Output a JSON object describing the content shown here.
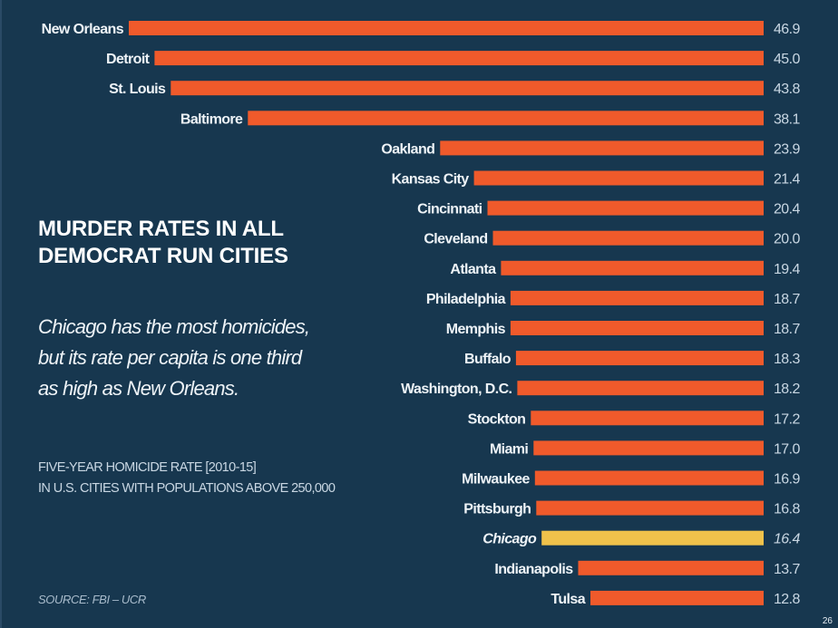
{
  "slide": {
    "title_lines": [
      "MURDER RATES IN ALL",
      "DEMOCRAT RUN CITIES"
    ],
    "subtitle_lines": [
      "Chicago has the most homicides,",
      "but its rate per capita is one third",
      "as high as New Orleans."
    ],
    "description_lines": [
      "FIVE-YEAR HOMICIDE RATE [2010-15]",
      "IN U.S. CITIES WITH POPULATIONS ABOVE 250,000"
    ],
    "source": "SOURCE: FBI – UCR",
    "page_number": "26"
  },
  "colors": {
    "background": "#17374f",
    "bar": "#f05a2b",
    "highlight_bar": "#f0c24b",
    "label_text": "#eef3f7",
    "value_text": "#c9d7e3"
  },
  "chart_data": {
    "type": "bar",
    "orientation": "horizontal",
    "title": "MURDER RATES IN ALL DEMOCRAT RUN CITIES",
    "xlabel": "Five-year homicide rate [2010-15]",
    "ylabel": "",
    "xlim": [
      0,
      46.9
    ],
    "grid": false,
    "legend": null,
    "highlight": "Chicago",
    "categories": [
      "New Orleans",
      "Detroit",
      "St. Louis",
      "Baltimore",
      "Oakland",
      "Kansas City",
      "Cincinnati",
      "Cleveland",
      "Atlanta",
      "Philadelphia",
      "Memphis",
      "Buffalo",
      "Washington, D.C.",
      "Stockton",
      "Miami",
      "Milwaukee",
      "Pittsburgh",
      "Chicago",
      "Indianapolis",
      "Tulsa"
    ],
    "values": [
      46.9,
      45.0,
      43.8,
      38.1,
      23.9,
      21.4,
      20.4,
      20.0,
      19.4,
      18.7,
      18.7,
      18.3,
      18.2,
      17.2,
      17.0,
      16.9,
      16.8,
      16.4,
      13.7,
      12.8
    ],
    "value_labels": [
      "46.9",
      "45.0",
      "43.8",
      "38.1",
      "23.9",
      "21.4",
      "20.4",
      "20.0",
      "19.4",
      "18.7",
      "18.7",
      "18.3",
      "18.2",
      "17.2",
      "17.0",
      "16.9",
      "16.8",
      "16.4",
      "13.7",
      "12.8"
    ]
  }
}
